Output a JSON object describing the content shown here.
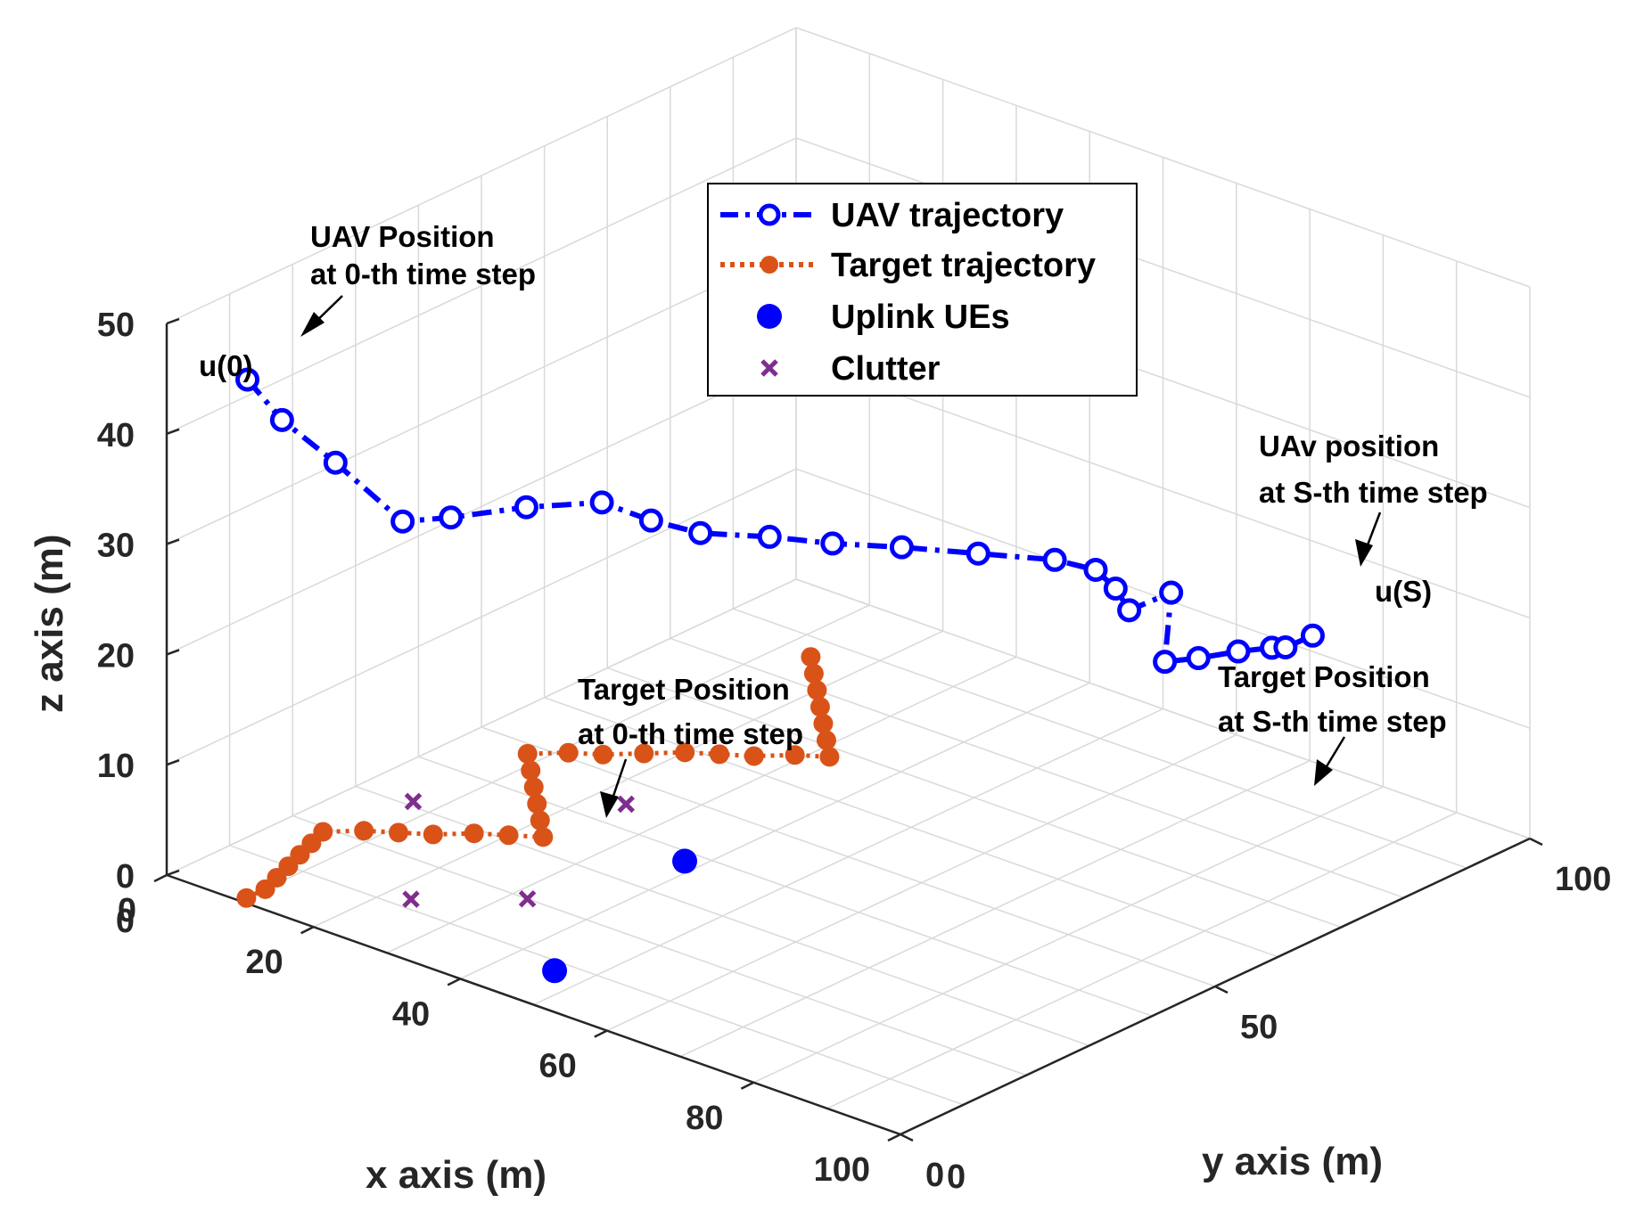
{
  "chart_data": {
    "type": "scatter3d",
    "view": "3d isometric",
    "grid": true,
    "xlabel": "x axis (m)",
    "ylabel": "y axis (m)",
    "zlabel": "z axis (m)",
    "xlim": [
      0,
      100
    ],
    "ylim": [
      0,
      100
    ],
    "zlim": [
      0,
      50
    ],
    "x_ticks": [
      "0",
      "20",
      "40",
      "60",
      "80",
      "100"
    ],
    "y_ticks": [
      "0",
      "50",
      "100"
    ],
    "z_ticks": [
      "0",
      "10",
      "20",
      "30",
      "40",
      "50"
    ],
    "legend": {
      "placement": "top-center",
      "entries": [
        "UAV trajectory",
        "Target trajectory",
        "Uplink UEs",
        "Clutter"
      ]
    },
    "series": [
      {
        "name": "UAV trajectory",
        "style": "dash-dot line with open circle markers",
        "color": "#0000ff",
        "points": [
          [
            11,
            0,
            47.5
          ],
          [
            14,
            2,
            44
          ],
          [
            17,
            7,
            39.5
          ],
          [
            21,
            13,
            33.5
          ],
          [
            25,
            16,
            34
          ],
          [
            31,
            21,
            35
          ],
          [
            37,
            26,
            35.5
          ],
          [
            42,
            28,
            34.5
          ],
          [
            47,
            30,
            34
          ],
          [
            53,
            34,
            34
          ],
          [
            59,
            37,
            34
          ],
          [
            65,
            41,
            34
          ],
          [
            72,
            45,
            34
          ],
          [
            79,
            49,
            34
          ],
          [
            82,
            52,
            33
          ],
          [
            83,
            54,
            31
          ],
          [
            84,
            55,
            29
          ],
          [
            88,
            57,
            31
          ],
          [
            88,
            56,
            25
          ],
          [
            90,
            59,
            25
          ],
          [
            92,
            63,
            25
          ],
          [
            94,
            66,
            25
          ],
          [
            95,
            67,
            25
          ],
          [
            97,
            69,
            26
          ]
        ]
      },
      {
        "name": "Target trajectory",
        "style": "dotted line with filled circle markers",
        "color": "#d95319",
        "points": [
          [
            10,
            1,
            0
          ],
          [
            10,
            4,
            0
          ],
          [
            9,
            7,
            0
          ],
          [
            8,
            10,
            0
          ],
          [
            7,
            13,
            0
          ],
          [
            6,
            16,
            0
          ],
          [
            5,
            19,
            0
          ],
          [
            8,
            22,
            0
          ],
          [
            11,
            24,
            0
          ],
          [
            14,
            26,
            0
          ],
          [
            17,
            29,
            0
          ],
          [
            20,
            31,
            0
          ],
          [
            23,
            33,
            0
          ],
          [
            20,
            36,
            0
          ],
          [
            17,
            39,
            0
          ],
          [
            14,
            42,
            0
          ],
          [
            11,
            45,
            0
          ],
          [
            8,
            48,
            0
          ],
          [
            11,
            51,
            0
          ],
          [
            14,
            53,
            0
          ],
          [
            17,
            56,
            0
          ],
          [
            20,
            59,
            0
          ],
          [
            23,
            61,
            0
          ],
          [
            26,
            63,
            0
          ],
          [
            29,
            66,
            0
          ],
          [
            32,
            68,
            0
          ],
          [
            29,
            71,
            0
          ],
          [
            26,
            74,
            0
          ],
          [
            23,
            77,
            0
          ],
          [
            20,
            80,
            0
          ],
          [
            17,
            83,
            0
          ],
          [
            14,
            86,
            0
          ]
        ]
      },
      {
        "name": "Uplink UEs",
        "style": "filled circle markers",
        "color": "#0000ff",
        "points": [
          [
            46,
            8,
            0
          ],
          [
            38,
            38,
            0
          ]
        ]
      },
      {
        "name": "Clutter",
        "style": "x markers",
        "color": "#7e2f8e",
        "points": [
          [
            23,
            12,
            0
          ],
          [
            32,
            20,
            0
          ],
          [
            7,
            31,
            0
          ],
          [
            24,
            45,
            0
          ]
        ]
      }
    ],
    "annotations": [
      {
        "text": [
          "UAV Position",
          "at 0-th time step"
        ],
        "target": "UAV trajectory start"
      },
      {
        "text": [
          "UAv position",
          "at S-th time step"
        ],
        "target": "UAV trajectory end"
      },
      {
        "text": [
          "Target Position",
          "at 0-th time step"
        ],
        "target": "Target trajectory point"
      },
      {
        "text": [
          "Target Position",
          "at S-th time step"
        ],
        "target": "Target trajectory end"
      },
      {
        "text": [
          "u(0)"
        ],
        "target": "UAV trajectory start"
      },
      {
        "text": [
          "u(S)"
        ],
        "target": "UAV trajectory end"
      }
    ]
  }
}
